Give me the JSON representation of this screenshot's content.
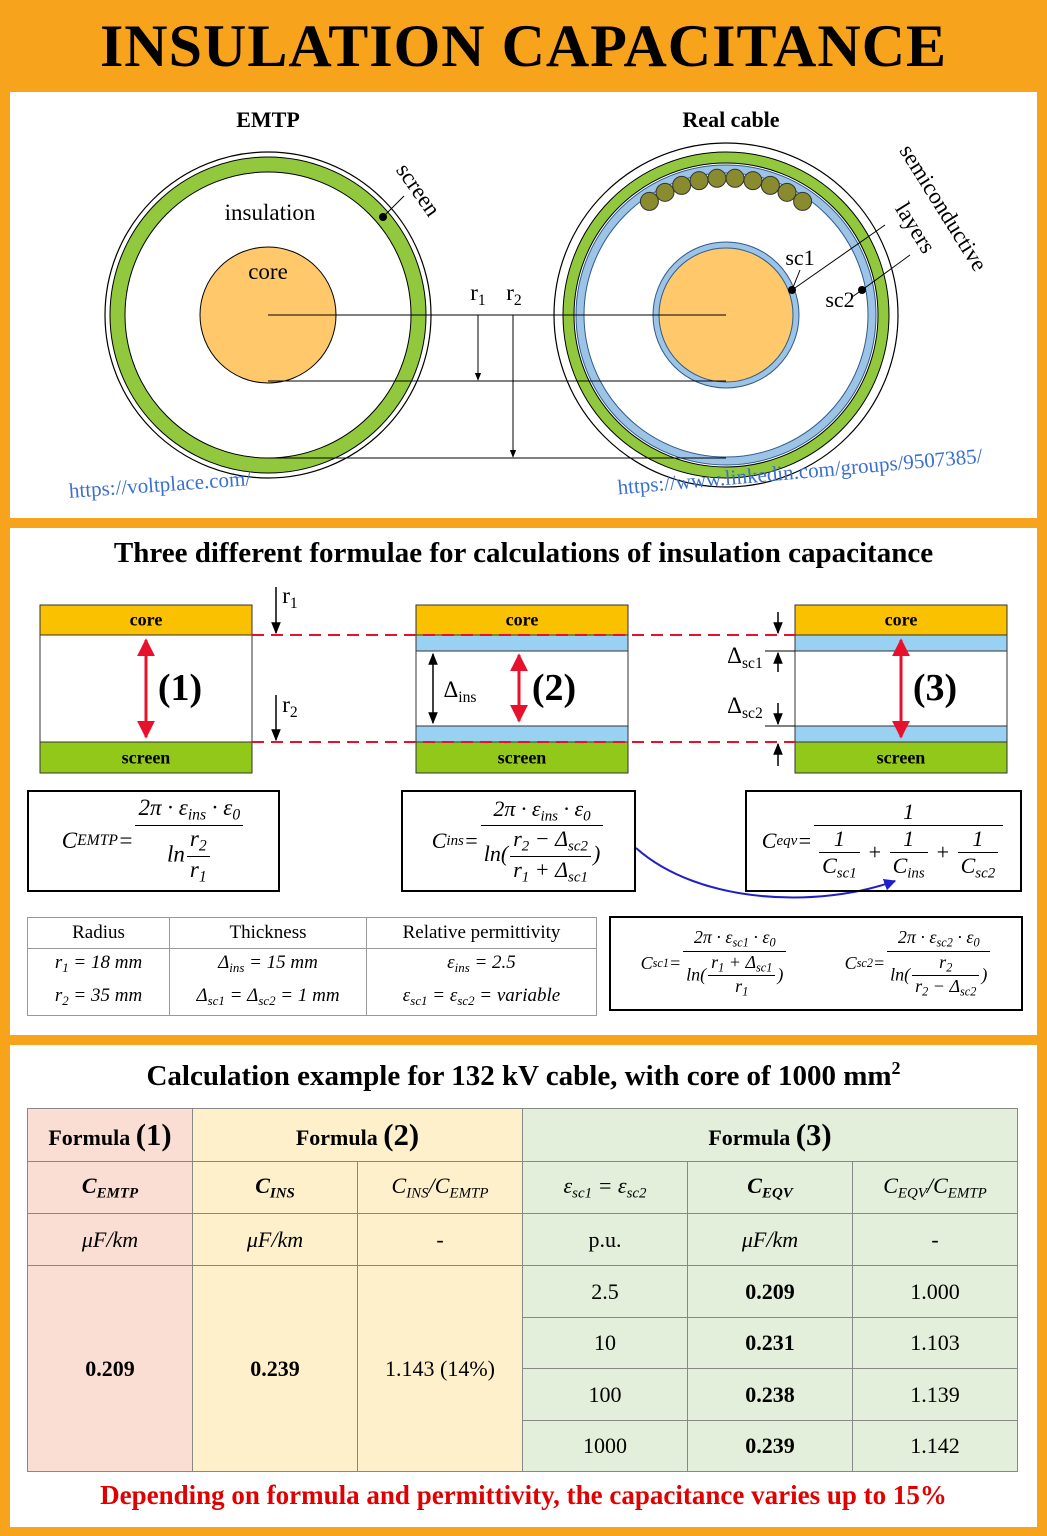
{
  "header": {
    "title": "INSULATION CAPACITANCE"
  },
  "diagram": {
    "emtp_label": "EMTP",
    "real_label": "Real cable",
    "screen": "screen",
    "insulation": "insulation",
    "core": "core",
    "r1": [
      "r",
      {
        "sub": "1"
      }
    ],
    "r2": [
      "r",
      {
        "sub": "2"
      }
    ],
    "sc1": "sc1",
    "sc2": "sc2",
    "semiconductive": "semiconductive",
    "layers": "layers",
    "url_left": "https://voltplace.com/",
    "url_right": "https://www.linkedin.com/groups/9507385/"
  },
  "formulae": {
    "title": "Three different formulae for calculations of insulation capacitance",
    "blocks": [
      {
        "core": "core",
        "screen": "screen",
        "number": "(1)"
      },
      {
        "core": "core",
        "screen": "screen",
        "number": "(2)"
      },
      {
        "core": "core",
        "screen": "screen",
        "number": "(3)"
      }
    ],
    "r1": [
      "r",
      {
        "sub": "1"
      }
    ],
    "r2": [
      "r",
      {
        "sub": "2"
      }
    ],
    "delta_ins": [
      "Δ",
      {
        "sub": "ins"
      }
    ],
    "delta_sc1": [
      "Δ",
      {
        "sub": "sc1"
      }
    ],
    "delta_sc2": [
      "Δ",
      {
        "sub": "sc2"
      }
    ],
    "formulas": [
      [
        "C",
        {
          "sub": "EMTP"
        },
        " = ",
        {
          "num": [
            "2π · ε",
            {
              "sub": "ins"
            },
            " · ε",
            {
              "sub": "0"
            }
          ],
          "den": [
            "ln",
            {
              "num": [
                "r",
                {
                  "sub": "2"
                }
              ],
              "den": [
                "r",
                {
                  "sub": "1"
                }
              ]
            }
          ]
        }
      ],
      [
        "C",
        {
          "sub": "ins"
        },
        " = ",
        {
          "num": [
            "2π · ε",
            {
              "sub": "ins"
            },
            " · ε",
            {
              "sub": "0"
            }
          ],
          "den": [
            "ln",
            "(",
            {
              "num": [
                "r",
                {
                  "sub": "2"
                },
                " − Δ",
                {
                  "sub": "sc2"
                }
              ],
              "den": [
                "r",
                {
                  "sub": "1"
                },
                " + Δ",
                {
                  "sub": "sc1"
                }
              ]
            },
            ")"
          ]
        }
      ],
      [
        "C",
        {
          "sub": "eqv"
        },
        " = ",
        {
          "num": "1",
          "den": [
            {
              "num": "1",
              "den": [
                "C",
                {
                  "sub": "sc1"
                }
              ]
            },
            " + ",
            {
              "num": "1",
              "den": [
                "C",
                {
                  "sub": "ins"
                }
              ]
            },
            " + ",
            {
              "num": "1",
              "den": [
                "C",
                {
                  "sub": "sc2"
                }
              ]
            }
          ]
        }
      ]
    ],
    "parameters": {
      "headers": [
        "Radius",
        "Thickness",
        "Relative permittivity"
      ],
      "cells": [
        [
          [
            "r",
            {
              "sub": "1"
            },
            " = 18 mm"
          ],
          [
            "r",
            {
              "sub": "2"
            },
            " = 35 mm"
          ]
        ],
        [
          [
            "Δ",
            {
              "sub": "ins"
            },
            " = 15 mm"
          ],
          [
            "Δ",
            {
              "sub": "sc1"
            },
            " = Δ",
            {
              "sub": "sc2"
            },
            " = 1 mm"
          ]
        ],
        [
          [
            "ε",
            {
              "sub": "ins"
            },
            " = 2.5"
          ],
          [
            "ε",
            {
              "sub": "sc1"
            },
            " = ε",
            {
              "sub": "sc2"
            },
            " = variable"
          ]
        ]
      ]
    },
    "sub_formulas": [
      [
        "C",
        {
          "sub": "sc1"
        },
        " = ",
        {
          "num": [
            "2π · ε",
            {
              "sub": "sc1"
            },
            " · ε",
            {
              "sub": "0"
            }
          ],
          "den": [
            "ln",
            "(",
            {
              "num": [
                "r",
                {
                  "sub": "1"
                },
                " + Δ",
                {
                  "sub": "sc1"
                }
              ],
              "den": [
                "r",
                {
                  "sub": "1"
                }
              ]
            },
            ")"
          ]
        }
      ],
      [
        "C",
        {
          "sub": "sc2"
        },
        " = ",
        {
          "num": [
            "2π · ε",
            {
              "sub": "sc2"
            },
            " · ε",
            {
              "sub": "0"
            }
          ],
          "den": [
            "ln",
            "(",
            {
              "num": [
                "r",
                {
                  "sub": "2"
                }
              ],
              "den": [
                "r",
                {
                  "sub": "2"
                },
                " − Δ",
                {
                  "sub": "sc2"
                }
              ]
            },
            ")"
          ]
        }
      ]
    ]
  },
  "example": {
    "title": [
      "Calculation example for 132 kV cable, with core of 1000 mm",
      {
        "sup": "2"
      }
    ],
    "groups": [
      [
        "Formula ",
        {
          "big": "(1)"
        }
      ],
      [
        "Formula ",
        {
          "big": "(2)"
        }
      ],
      [
        "Formula ",
        {
          "big": "(3)"
        }
      ]
    ],
    "columns": [
      [
        "C",
        {
          "sub": "EMTP"
        }
      ],
      [
        "C",
        {
          "sub": "INS"
        }
      ],
      [
        "C",
        {
          "sub": "INS"
        },
        "/C",
        {
          "sub": "EMTP"
        }
      ],
      [
        "ε",
        {
          "sub": "sc1"
        },
        " = ε",
        {
          "sub": "sc2"
        }
      ],
      [
        "C",
        {
          "sub": "EQV"
        }
      ],
      [
        "C",
        {
          "sub": "EQV"
        },
        "/C",
        {
          "sub": "EMTP"
        }
      ]
    ],
    "units": [
      "μF/km",
      "μF/km",
      "-",
      "p.u.",
      "μF/km",
      "-"
    ],
    "emtp": "0.209",
    "ins": "0.239",
    "ratio": "1.143 (14%)",
    "rows": [
      [
        "2.5",
        "0.209",
        "1.000"
      ],
      [
        "10",
        "0.231",
        "1.103"
      ],
      [
        "100",
        "0.238",
        "1.139"
      ],
      [
        "1000",
        "0.239",
        "1.142"
      ]
    ]
  },
  "footer": "Depending on formula and permittivity, the capacitance varies up to 15%"
}
